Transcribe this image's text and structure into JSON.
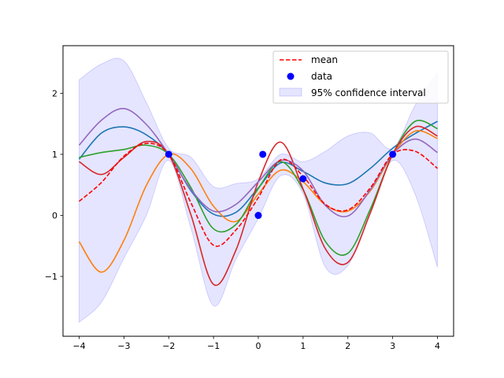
{
  "chart_data": {
    "type": "line",
    "title": "",
    "xlabel": "",
    "ylabel": "",
    "xlim": [
      -4.36,
      4.36
    ],
    "ylim": [
      -1.98,
      2.78
    ],
    "xticks": [
      -4,
      -3,
      -2,
      -1,
      0,
      1,
      2,
      3,
      4
    ],
    "xtick_labels": [
      "−4",
      "−3",
      "−2",
      "−1",
      "0",
      "1",
      "2",
      "3",
      "4"
    ],
    "yticks": [
      -1,
      0,
      1,
      2
    ],
    "ytick_labels": [
      "−1",
      "0",
      "1",
      "2"
    ],
    "grid": false,
    "legend_position": "top-right",
    "legend": [
      {
        "label": "mean",
        "kind": "dashed-line",
        "color": "#ff0000"
      },
      {
        "label": "data",
        "kind": "marker",
        "color": "#0000ff"
      },
      {
        "label": "95% confidence interval",
        "kind": "patch",
        "color": "#0000ff"
      }
    ],
    "data_points": {
      "name": "data",
      "color": "#0000ff",
      "x": [
        -2.0,
        0.0,
        0.1,
        1.0,
        3.0
      ],
      "y": [
        1.0,
        0.0,
        1.0,
        0.6,
        1.0
      ]
    },
    "confidence_interval": {
      "name": "95% confidence interval",
      "color": "#0000ff",
      "x": [
        -4.0,
        -3.5,
        -3.0,
        -2.5,
        -2.0,
        -1.5,
        -1.0,
        -0.5,
        0.0,
        0.5,
        1.0,
        1.5,
        2.0,
        2.5,
        3.0,
        3.5,
        4.0
      ],
      "upper": [
        2.22,
        2.48,
        2.53,
        1.85,
        1.1,
        0.95,
        0.47,
        0.52,
        0.6,
        1.0,
        0.88,
        1.05,
        1.3,
        1.35,
        1.1,
        1.8,
        2.34
      ],
      "lower": [
        -1.75,
        -1.42,
        -0.7,
        0.0,
        0.9,
        -0.22,
        -1.48,
        -0.72,
        -0.05,
        0.65,
        0.35,
        -0.85,
        -0.82,
        0.05,
        0.9,
        0.35,
        -0.85
      ]
    },
    "mean": {
      "name": "mean",
      "color": "#ff0000",
      "x": [
        -4.0,
        -3.5,
        -3.0,
        -2.5,
        -2.0,
        -1.5,
        -1.0,
        -0.5,
        0.0,
        0.5,
        1.0,
        1.5,
        2.0,
        2.5,
        3.0,
        3.5,
        4.0
      ],
      "y": [
        0.23,
        0.54,
        0.97,
        1.18,
        1.0,
        0.2,
        -0.49,
        -0.24,
        0.29,
        0.91,
        0.64,
        0.18,
        0.09,
        0.45,
        1.0,
        1.05,
        0.77
      ]
    },
    "samples": [
      {
        "color": "#1f77b4",
        "x": [
          -4.0,
          -3.5,
          -3.0,
          -2.5,
          -2.0,
          -1.5,
          -1.0,
          -0.5,
          0.0,
          0.5,
          1.0,
          1.5,
          2.0,
          2.5,
          3.0,
          3.5,
          4.0
        ],
        "y": [
          0.92,
          1.35,
          1.45,
          1.32,
          1.0,
          0.4,
          0.02,
          0.05,
          0.45,
          0.86,
          0.72,
          0.53,
          0.52,
          0.77,
          1.1,
          1.34,
          1.54
        ]
      },
      {
        "color": "#ff7f0e",
        "x": [
          -4.0,
          -3.5,
          -3.0,
          -2.5,
          -2.0,
          -1.5,
          -1.0,
          -0.5,
          0.0,
          0.5,
          1.0,
          1.5,
          2.0,
          2.5,
          3.0,
          3.5,
          4.0
        ],
        "y": [
          -0.43,
          -0.93,
          -0.41,
          0.49,
          1.0,
          0.76,
          0.15,
          -0.1,
          0.35,
          0.74,
          0.55,
          0.17,
          0.07,
          0.4,
          1.0,
          1.38,
          1.26
        ]
      },
      {
        "color": "#2ca02c",
        "x": [
          -4.0,
          -3.5,
          -3.0,
          -2.5,
          -2.0,
          -1.5,
          -1.0,
          -0.5,
          0.0,
          0.5,
          1.0,
          1.5,
          2.0,
          2.5,
          3.0,
          3.5,
          4.0
        ],
        "y": [
          0.95,
          1.03,
          1.08,
          1.15,
          1.0,
          0.45,
          -0.22,
          -0.15,
          0.44,
          0.88,
          0.42,
          -0.43,
          -0.62,
          0.1,
          1.0,
          1.54,
          1.42
        ]
      },
      {
        "color": "#d62728",
        "x": [
          -4.0,
          -3.5,
          -3.0,
          -2.5,
          -2.0,
          -1.5,
          -1.0,
          -0.5,
          0.0,
          0.5,
          1.0,
          1.5,
          2.0,
          2.5,
          3.0,
          3.5,
          4.0
        ],
        "y": [
          0.88,
          0.67,
          0.95,
          1.21,
          1.0,
          0.0,
          -1.13,
          -0.57,
          0.55,
          1.2,
          0.43,
          -0.55,
          -0.77,
          0.04,
          1.0,
          1.45,
          1.3
        ]
      },
      {
        "color": "#9467bd",
        "x": [
          -4.0,
          -3.5,
          -3.0,
          -2.5,
          -2.0,
          -1.5,
          -1.0,
          -0.5,
          0.0,
          0.5,
          1.0,
          1.5,
          2.0,
          2.5,
          3.0,
          3.5,
          4.0
        ],
        "y": [
          1.15,
          1.56,
          1.75,
          1.49,
          1.0,
          0.42,
          0.07,
          0.18,
          0.55,
          0.9,
          0.73,
          0.16,
          -0.01,
          0.42,
          1.0,
          1.25,
          1.03
        ]
      }
    ]
  }
}
